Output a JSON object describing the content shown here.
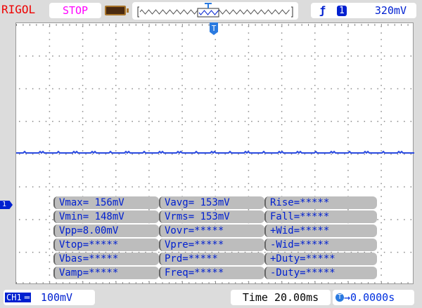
{
  "header": {
    "brand": "RIGOL",
    "run_state": "STOP",
    "trigger_edge_icon": "rising-edge-icon",
    "trigger_source": "1",
    "trigger_level": "320mV"
  },
  "colors": {
    "trace": "#2a4ae0",
    "text": "#0020d0",
    "brand": "#e00000",
    "run_state": "#ff00ff"
  },
  "measurements": [
    [
      "Vmax= 156mV",
      "Vavg= 153mV",
      "Rise=*****"
    ],
    [
      "Vmin= 148mV",
      "Vrms= 153mV",
      "Fall=*****"
    ],
    [
      "Vpp=8.00mV",
      "Vovr=*****",
      "+Wid=*****"
    ],
    [
      "Vtop=*****",
      "Vpre=*****",
      "-Wid=*****"
    ],
    [
      "Vbas=*****",
      "Prd=*****",
      "+Duty=*****"
    ],
    [
      "Vamp=*****",
      "Freq=*****",
      "-Duty=*****"
    ]
  ],
  "footer": {
    "channel": "CH1",
    "coupling_icon": "dc-coupling-icon",
    "scale": "100mV",
    "timebase": "Time 20.00ms",
    "trigger_offset": "0.0000s"
  },
  "markers": {
    "trigger": "T",
    "channel": "1"
  }
}
